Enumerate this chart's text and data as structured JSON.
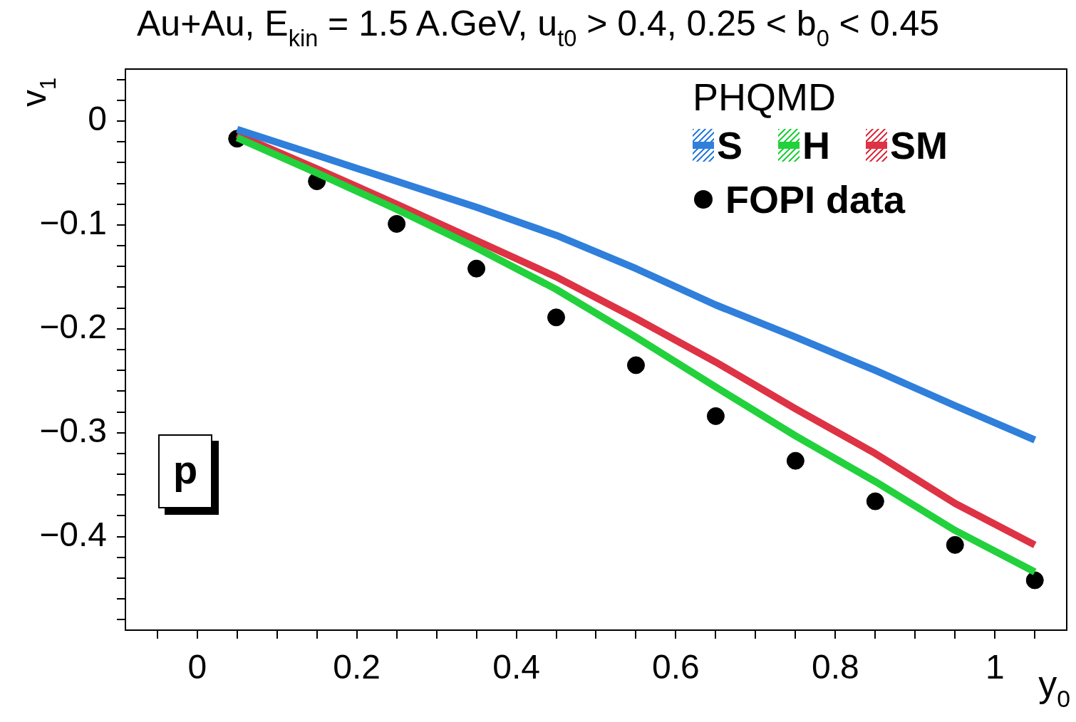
{
  "chart_data": {
    "type": "line",
    "title": "Au+Au, E$_{kin}$ = 1.5 A.GeV, u$_{t0}$ > 0.4, 0.25 < b$_{0}$ < 0.45",
    "xlabel": "y$_{0}$",
    "ylabel": "v$_{1}$",
    "legend_title": "PHQMD",
    "legend": "top right",
    "grid": false,
    "annotations": [
      "p"
    ],
    "xlim": [
      -0.09,
      1.09
    ],
    "ylim": [
      -0.49,
      0.05
    ],
    "xticks": [
      {
        "value": -0.05,
        "label": null
      },
      0,
      {
        "value": 0.05,
        "label": null
      },
      {
        "value": 0.1,
        "label": null
      },
      {
        "value": 0.15,
        "label": null
      },
      0.2,
      {
        "value": 0.25,
        "label": null
      },
      {
        "value": 0.3,
        "label": null
      },
      {
        "value": 0.35,
        "label": null
      },
      0.4,
      {
        "value": 0.45,
        "label": null
      },
      {
        "value": 0.5,
        "label": null
      },
      {
        "value": 0.55,
        "label": null
      },
      0.6,
      {
        "value": 0.65,
        "label": null
      },
      {
        "value": 0.7,
        "label": null
      },
      {
        "value": 0.75,
        "label": null
      },
      0.8,
      {
        "value": 0.85,
        "label": null
      },
      {
        "value": 0.9,
        "label": null
      },
      {
        "value": 0.95,
        "label": null
      },
      1,
      {
        "value": 1.05,
        "label": null
      }
    ],
    "yticks": [
      {
        "value": -0.48,
        "label": null
      },
      {
        "value": -0.46,
        "label": null
      },
      {
        "value": -0.44,
        "label": null
      },
      {
        "value": -0.42,
        "label": null
      },
      {
        "value": -0.4,
        "label": "−0.4"
      },
      {
        "value": -0.38,
        "label": null
      },
      {
        "value": -0.36,
        "label": null
      },
      {
        "value": -0.34,
        "label": null
      },
      {
        "value": -0.32,
        "label": null
      },
      {
        "value": -0.3,
        "label": "−0.3"
      },
      {
        "value": -0.28,
        "label": null
      },
      {
        "value": -0.26,
        "label": null
      },
      {
        "value": -0.24,
        "label": null
      },
      {
        "value": -0.22,
        "label": null
      },
      {
        "value": -0.2,
        "label": "−0.2"
      },
      {
        "value": -0.18,
        "label": null
      },
      {
        "value": -0.16,
        "label": null
      },
      {
        "value": -0.14,
        "label": null
      },
      {
        "value": -0.12,
        "label": null
      },
      {
        "value": -0.1,
        "label": "−0.1"
      },
      {
        "value": -0.08,
        "label": null
      },
      {
        "value": -0.06,
        "label": null
      },
      {
        "value": -0.04,
        "label": null
      },
      {
        "value": -0.02,
        "label": null
      },
      0,
      {
        "value": 0.02,
        "label": null
      },
      {
        "value": 0.04,
        "label": null
      }
    ],
    "x": [
      0.05,
      0.15,
      0.25,
      0.35,
      0.45,
      0.55,
      0.65,
      0.75,
      0.85,
      0.95,
      1.05
    ],
    "series": [
      {
        "name": "S",
        "color": "#2f7fdb",
        "values": [
          -0.008,
          -0.033,
          -0.058,
          -0.083,
          -0.11,
          -0.142,
          -0.177,
          -0.208,
          -0.24,
          -0.274,
          -0.307
        ]
      },
      {
        "name": "H",
        "color": "#22d13c",
        "values": [
          -0.016,
          -0.05,
          -0.085,
          -0.122,
          -0.162,
          -0.208,
          -0.256,
          -0.303,
          -0.347,
          -0.394,
          -0.434
        ]
      },
      {
        "name": "SM",
        "color": "#dd3344",
        "values": [
          -0.013,
          -0.046,
          -0.08,
          -0.115,
          -0.15,
          -0.19,
          -0.232,
          -0.277,
          -0.32,
          -0.368,
          -0.408
        ]
      },
      {
        "name": "FOPI data",
        "type": "scatter",
        "marker": "circle",
        "color": "#000000",
        "values": [
          -0.017,
          -0.058,
          -0.099,
          -0.142,
          -0.189,
          -0.235,
          -0.284,
          -0.327,
          -0.366,
          -0.408,
          -0.442
        ]
      }
    ]
  }
}
